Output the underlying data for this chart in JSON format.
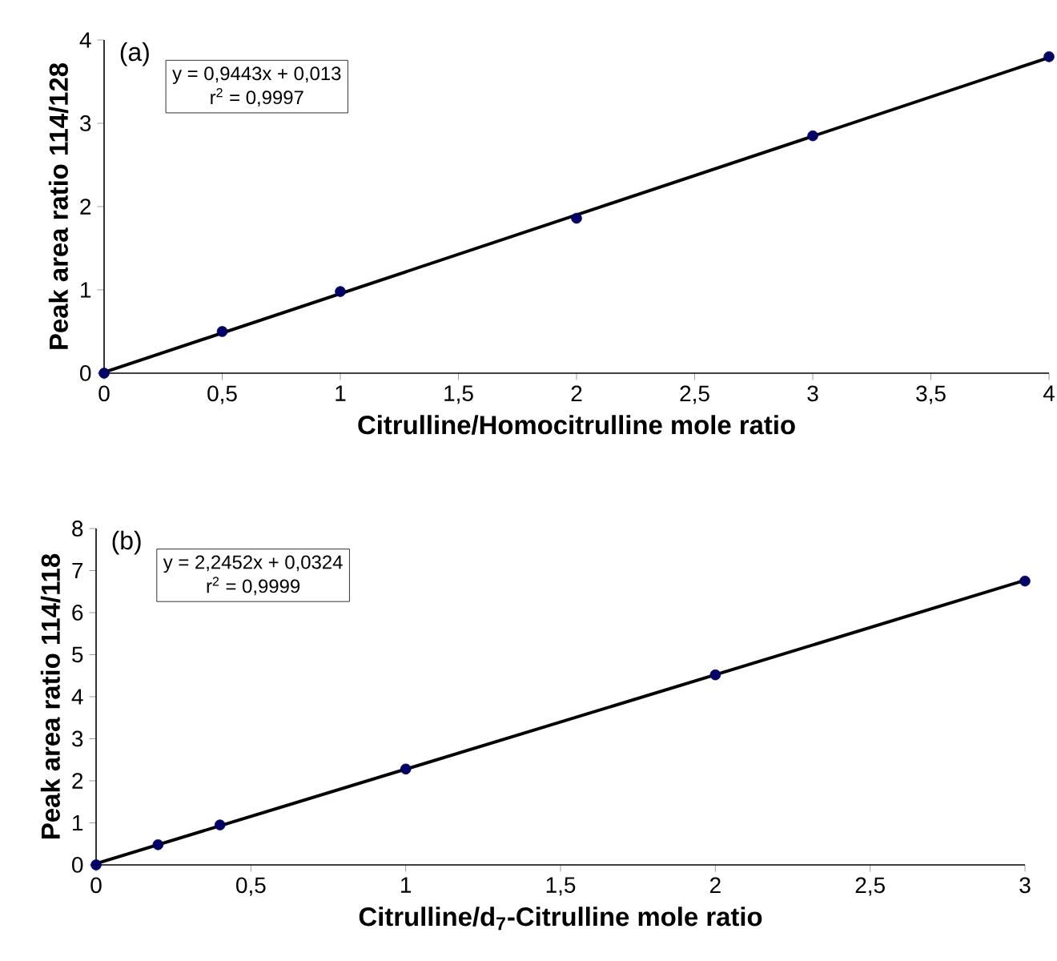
{
  "chart_data": [
    {
      "type": "scatter",
      "xlabel": "Citrulline/Homocitrulline mole ratio",
      "ylabel": "Peak area ratio 114/128",
      "annotations": [
        "(a)",
        "y = 0,9443x + 0,013",
        "r$^{2}$ = 0,9997"
      ],
      "xlim": [
        0,
        4
      ],
      "ylim": [
        0,
        4
      ],
      "xticks": [
        0,
        {
          "value": 0.5,
          "label": "0,5"
        },
        1,
        {
          "value": 1.5,
          "label": "1,5"
        },
        2,
        {
          "value": 2.5,
          "label": "2,5"
        },
        3,
        {
          "value": 3.5,
          "label": "3,5"
        },
        4
      ],
      "yticks": [
        0,
        1,
        2,
        3,
        4
      ],
      "series": [
        {
          "marker": "circle",
          "color": "#000066",
          "x": [
            0,
            0.5,
            1,
            2,
            3,
            4
          ],
          "values": [
            0,
            0.5,
            0.98,
            1.86,
            2.85,
            3.8
          ]
        },
        {
          "type": "line",
          "color": "#000000",
          "x": [
            0,
            4
          ],
          "values": [
            0.01,
            3.79
          ]
        }
      ]
    },
    {
      "type": "scatter",
      "xlabel": "Citrulline/d$_{7}$-Citrulline mole ratio",
      "ylabel": "Peak area ratio 114/118",
      "annotations": [
        "(b)",
        "y = 2,2452x + 0,0324",
        "r$^{2}$ = 0,9999"
      ],
      "xlim": [
        0,
        3
      ],
      "ylim": [
        0,
        8
      ],
      "xticks": [
        0,
        {
          "value": 0.5,
          "label": "0,5"
        },
        1,
        {
          "value": 1.5,
          "label": "1,5"
        },
        2,
        {
          "value": 2.5,
          "label": "2,5"
        },
        3
      ],
      "yticks": [
        0,
        1,
        2,
        3,
        4,
        5,
        6,
        7,
        8
      ],
      "series": [
        {
          "marker": "circle",
          "color": "#000066",
          "x": [
            0,
            0.2,
            0.4,
            1,
            2,
            3
          ],
          "values": [
            0,
            0.48,
            0.95,
            2.28,
            4.52,
            6.75
          ]
        },
        {
          "type": "line",
          "color": "#000000",
          "x": [
            0,
            3
          ],
          "values": [
            0.03,
            6.77
          ]
        }
      ]
    }
  ]
}
